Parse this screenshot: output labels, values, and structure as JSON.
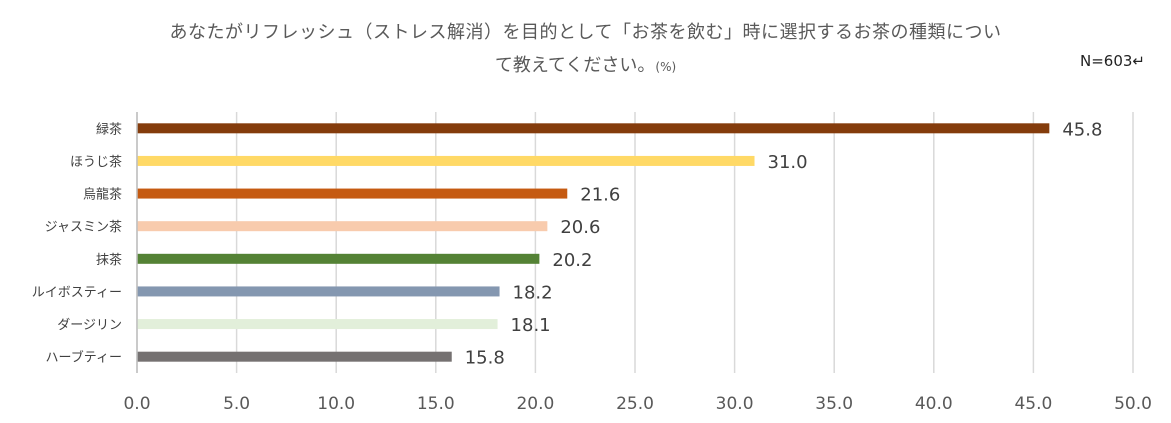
{
  "chart_data": {
    "type": "bar",
    "orientation": "horizontal",
    "title_line1": "あなたがリフレッシュ（ストレス解消）を目的として「お茶を飲む」時に選択するお茶の種類につい",
    "title_line2": "て教えてください。",
    "unit": "(%)",
    "sample_size": "N=603↵",
    "categories": [
      "緑茶",
      "ほうじ茶",
      "烏龍茶",
      "ジャスミン茶",
      "抹茶",
      "ルイボスティー",
      "ダージリン",
      "ハーブティー"
    ],
    "values": [
      45.8,
      31.0,
      21.6,
      20.6,
      20.2,
      18.2,
      18.1,
      15.8
    ],
    "value_labels": [
      "45.8",
      "31.0",
      "21.6",
      "20.6",
      "20.2",
      "18.2",
      "18.1",
      "15.8"
    ],
    "colors": [
      "#843c0c",
      "#ffd966",
      "#c55a11",
      "#f8cbad",
      "#548235",
      "#8497b0",
      "#e2efda",
      "#757171"
    ],
    "xlim": [
      0,
      50
    ],
    "xticks": [
      "0.0",
      "5.0",
      "10.0",
      "15.0",
      "20.0",
      "25.0",
      "30.0",
      "35.0",
      "40.0",
      "45.0",
      "50.0"
    ],
    "grid": true
  }
}
